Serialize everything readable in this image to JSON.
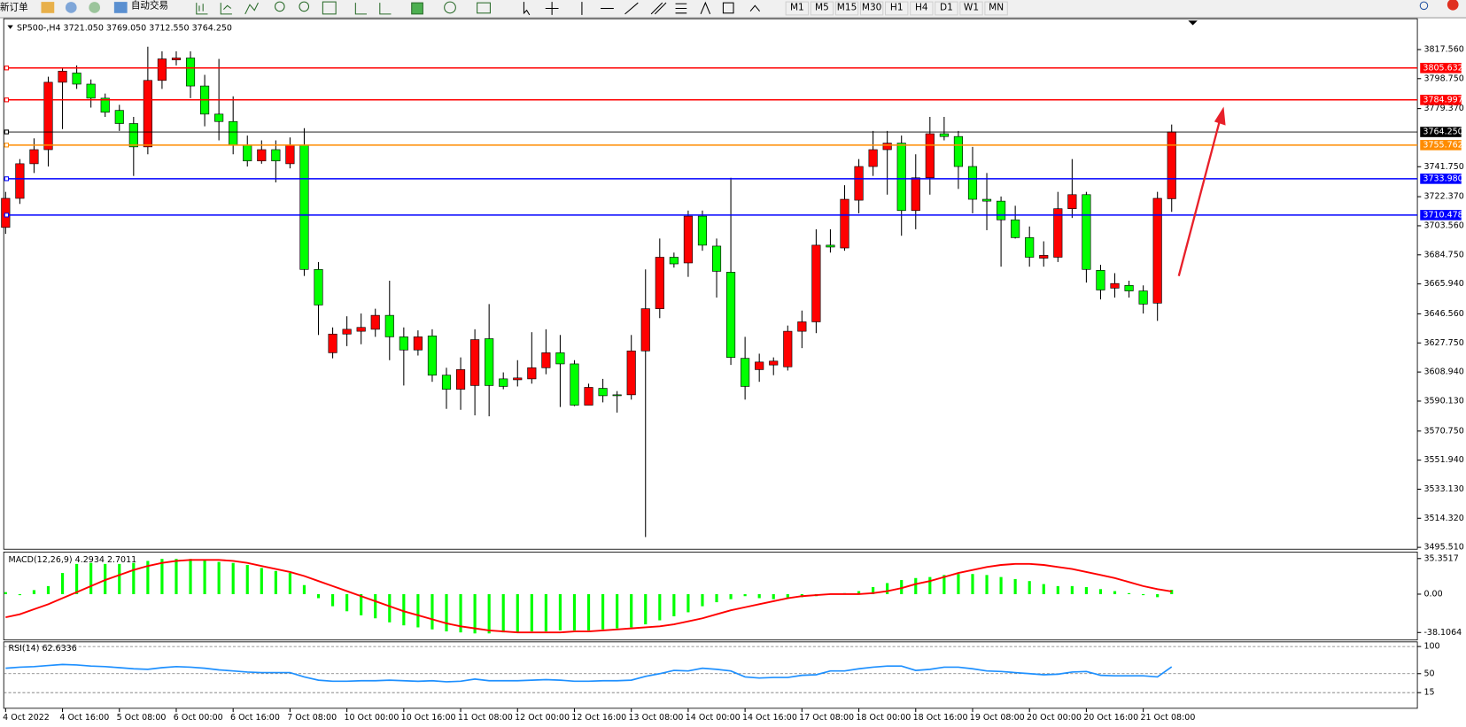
{
  "toolbar": {
    "new_order": "新订单",
    "auto_trading": "自动交易",
    "timeframes": [
      "M1",
      "M5",
      "M15",
      "M30",
      "H1",
      "H4",
      "D1",
      "W1",
      "MN"
    ]
  },
  "chart_data": [
    {
      "type": "candlestick",
      "title": "SP500-,H4",
      "title_values": [
        {
          "value": 3721.05,
          "label": "3721.050"
        },
        {
          "value": 3769.05,
          "label": "3769.050"
        },
        {
          "value": 3712.55,
          "label": "3712.550"
        },
        {
          "value": 3764.25,
          "label": "3764.250"
        }
      ],
      "x": [
        "4 Oct 2022",
        null,
        null,
        null,
        "4 Oct 16:00",
        null,
        null,
        null,
        "5 Oct 08:00",
        null,
        null,
        null,
        "6 Oct 00:00",
        null,
        null,
        null,
        "6 Oct 16:00",
        null,
        null,
        null,
        "7 Oct 08:00",
        null,
        null,
        null,
        "10 Oct 00:00",
        null,
        null,
        null,
        "10 Oct 16:00",
        null,
        null,
        null,
        "11 Oct 08:00",
        null,
        null,
        null,
        "12 Oct 00:00",
        null,
        null,
        null,
        "12 Oct 16:00",
        null,
        null,
        null,
        "13 Oct 08:00",
        null,
        null,
        null,
        "14 Oct 00:00",
        null,
        null,
        null,
        "14 Oct 16:00",
        null,
        null,
        null,
        "17 Oct 08:00",
        null,
        null,
        null,
        "18 Oct 00:00",
        null,
        null,
        null,
        "18 Oct 16:00",
        null,
        null,
        null,
        "19 Oct 08:00",
        null,
        null,
        null,
        "20 Oct 00:00",
        null,
        null,
        null,
        "20 Oct 16:00",
        null,
        null,
        null,
        "21 Oct 08:00",
        null,
        null
      ],
      "open": [
        3702.5,
        3721.3,
        3743.7,
        3752.8,
        3796.4,
        3802.4,
        3795.2,
        3786.1,
        3778.2,
        3769.7,
        3754.6,
        3797.6,
        3810.9,
        3812.1,
        3794.0,
        3775.8,
        3771.0,
        3755.8,
        3745.5,
        3752.8,
        3743.7,
        3755.8,
        3675.3,
        3621.4,
        3633.5,
        3635.3,
        3636.6,
        3645.6,
        3631.7,
        3623.2,
        3632.3,
        3606.9,
        3597.8,
        3600.2,
        3630.5,
        3604.5,
        3603.9,
        3604.5,
        3611.7,
        3621.4,
        3614.2,
        3587.5,
        3598.4,
        3594.2,
        3594.2,
        3622.6,
        3649.9,
        3683.2,
        3679.5,
        3709.8,
        3690.4,
        3673.5,
        3617.8,
        3610.5,
        3613.5,
        3612.3,
        3635.3,
        3641.4,
        3691.0,
        3689.2,
        3720.1,
        3741.9,
        3752.8,
        3757.0,
        3713.4,
        3734.6,
        3763.1,
        3761.3,
        3741.9,
        3720.7,
        3719.5,
        3707.4,
        3695.9,
        3682.6,
        3683.2,
        3714.6,
        3723.7,
        3674.7,
        3663.2,
        3665.0,
        3661.4,
        3653.5,
        3721.05
      ],
      "high": [
        3725.5,
        3746.7,
        3760.1,
        3800.0,
        3805.5,
        3807.3,
        3798.2,
        3789.1,
        3781.8,
        3774.0,
        3819.4,
        3816.4,
        3816.4,
        3816.4,
        3801.2,
        3811.5,
        3787.3,
        3761.9,
        3758.8,
        3758.8,
        3760.7,
        3766.7,
        3680.1,
        3637.8,
        3645.0,
        3646.8,
        3649.9,
        3668.0,
        3637.8,
        3635.9,
        3636.6,
        3611.7,
        3618.4,
        3636.6,
        3652.9,
        3608.7,
        3616.6,
        3634.7,
        3636.6,
        3632.9,
        3616.6,
        3601.4,
        3604.5,
        3596.6,
        3632.9,
        3675.3,
        3695.3,
        3686.2,
        3713.4,
        3713.4,
        3695.3,
        3734.6,
        3631.7,
        3620.8,
        3618.4,
        3639.0,
        3648.7,
        3701.3,
        3701.3,
        3729.8,
        3746.7,
        3764.9,
        3764.9,
        3761.9,
        3749.8,
        3774.0,
        3774.0,
        3764.9,
        3754.6,
        3737.7,
        3722.5,
        3716.5,
        3703.1,
        3693.5,
        3725.5,
        3746.7,
        3725.5,
        3678.3,
        3672.9,
        3668.0,
        3665.0,
        3725.5,
        3769.05
      ],
      "low": [
        3698.3,
        3717.7,
        3737.7,
        3741.9,
        3766.1,
        3792.1,
        3780.0,
        3774.0,
        3764.9,
        3735.8,
        3749.8,
        3792.1,
        3807.3,
        3786.1,
        3767.9,
        3758.8,
        3749.8,
        3741.9,
        3743.7,
        3731.6,
        3740.7,
        3671.1,
        3632.9,
        3617.8,
        3625.7,
        3626.9,
        3631.7,
        3616.6,
        3600.2,
        3619.6,
        3602.6,
        3585.1,
        3584.5,
        3580.9,
        3580.3,
        3597.8,
        3599.6,
        3601.4,
        3607.5,
        3586.3,
        3586.9,
        3587.5,
        3589.3,
        3582.7,
        3591.1,
        3502.2,
        3643.8,
        3676.5,
        3670.5,
        3687.4,
        3657.1,
        3613.5,
        3591.1,
        3602.6,
        3606.9,
        3609.9,
        3624.4,
        3634.1,
        3686.2,
        3687.4,
        3711.6,
        3735.8,
        3723.7,
        3697.1,
        3701.3,
        3723.7,
        3758.8,
        3727.4,
        3711.6,
        3700.7,
        3677.1,
        3695.3,
        3677.1,
        3677.1,
        3680.1,
        3708.6,
        3666.8,
        3655.9,
        3657.1,
        3657.1,
        3646.8,
        3642.0,
        3712.55
      ],
      "close": [
        3721.3,
        3743.7,
        3752.8,
        3796.4,
        3803.6,
        3795.2,
        3786.1,
        3777.0,
        3769.7,
        3754.6,
        3797.6,
        3811.5,
        3812.1,
        3794.0,
        3775.8,
        3771.0,
        3755.8,
        3745.5,
        3752.8,
        3745.5,
        3755.8,
        3675.3,
        3652.3,
        3633.5,
        3636.6,
        3637.8,
        3645.6,
        3631.7,
        3623.2,
        3631.7,
        3606.9,
        3597.8,
        3610.5,
        3629.9,
        3600.2,
        3599.6,
        3605.1,
        3611.7,
        3621.4,
        3614.2,
        3587.5,
        3599.0,
        3593.6,
        3593.6,
        3622.6,
        3649.9,
        3683.2,
        3678.9,
        3709.8,
        3691.0,
        3674.1,
        3618.4,
        3599.6,
        3615.4,
        3616.0,
        3635.3,
        3641.4,
        3691.0,
        3689.8,
        3720.7,
        3741.9,
        3752.8,
        3757.0,
        3713.4,
        3734.6,
        3763.1,
        3761.3,
        3741.9,
        3720.7,
        3719.5,
        3707.4,
        3695.9,
        3683.2,
        3684.4,
        3714.6,
        3723.7,
        3675.3,
        3662.0,
        3666.2,
        3661.4,
        3652.9,
        3721.3,
        3764.25
      ],
      "up_color": "#ff0000",
      "down_color": "#00ff00",
      "ylim": [
        3494.3,
        3836.3
      ],
      "yticks": [
        {
          "value": 3817.56,
          "label": "3817.560"
        },
        {
          "value": 3798.75,
          "label": "3798.750"
        },
        {
          "value": 3779.37,
          "label": "3779.370"
        },
        {
          "value": 3741.75,
          "label": "3741.750"
        },
        {
          "value": 3722.37,
          "label": "3722.370"
        },
        {
          "value": 3703.56,
          "label": "3703.560"
        },
        {
          "value": 3684.75,
          "label": "3684.750"
        },
        {
          "value": 3665.94,
          "label": "3665.940"
        },
        {
          "value": 3646.56,
          "label": "3646.560"
        },
        {
          "value": 3627.75,
          "label": "3627.750"
        },
        {
          "value": 3608.94,
          "label": "3608.940"
        },
        {
          "value": 3590.13,
          "label": "3590.130"
        },
        {
          "value": 3570.75,
          "label": "3570.750"
        },
        {
          "value": 3551.94,
          "label": "3551.940"
        },
        {
          "value": 3533.13,
          "label": "3533.130"
        },
        {
          "value": 3514.32,
          "label": "3514.320"
        },
        {
          "value": 3495.51,
          "label": "3495.510"
        }
      ],
      "grid": false,
      "hlines": [
        {
          "value": 3805.632,
          "label": "3805.632",
          "color": "#ff0000"
        },
        {
          "value": 3784.997,
          "label": "3784.997",
          "color": "#ff0000"
        },
        {
          "value": 3764.25,
          "label": "3764.250",
          "color": "#000000"
        },
        {
          "value": 3755.762,
          "label": "3755.762",
          "color": "#ff8c00"
        },
        {
          "value": 3733.98,
          "label": "3733.980",
          "color": "#0000ff"
        },
        {
          "value": 3710.478,
          "label": "3710.478",
          "color": "#0000ff"
        }
      ]
    },
    {
      "type": "macd",
      "title": "MACD(12,26,9)",
      "main_value": 4.2934,
      "signal_value": 2.7011,
      "histogram": [
        2,
        -1,
        4,
        8,
        21,
        30,
        31,
        30,
        30,
        31,
        33,
        35,
        35,
        35,
        34,
        32,
        31,
        29,
        26,
        23,
        21,
        9,
        -4,
        -12,
        -17,
        -21,
        -24,
        -28,
        -31,
        -33,
        -35,
        -37,
        -38,
        -39,
        -39,
        -38,
        -38,
        -37,
        -37,
        -36,
        -36,
        -36,
        -35,
        -34,
        -33,
        -30,
        -26,
        -22,
        -18,
        -12,
        -8,
        -5,
        -2,
        -4,
        -5,
        -4,
        -3,
        -2,
        0,
        1,
        3,
        7,
        11,
        14,
        16,
        17,
        19,
        20,
        20,
        19,
        17,
        15,
        13,
        10,
        8,
        8,
        7,
        5,
        3,
        1,
        -1,
        -3,
        4.2934
      ],
      "signal": [
        -23,
        -20,
        -15,
        -10,
        -4,
        2,
        8,
        14,
        19,
        24,
        28,
        31,
        33,
        34,
        34,
        34,
        33,
        31,
        28,
        25,
        22,
        18,
        13,
        8,
        3,
        -2,
        -7,
        -12,
        -17,
        -21,
        -25,
        -29,
        -32,
        -34,
        -36,
        -37,
        -38,
        -38,
        -38,
        -38,
        -37,
        -37,
        -36,
        -35,
        -34,
        -33,
        -32,
        -30,
        -27,
        -24,
        -20,
        -16,
        -13,
        -10,
        -7,
        -4,
        -2,
        -1,
        0,
        0,
        0,
        1,
        3,
        6,
        10,
        13,
        17,
        21,
        24,
        27,
        29,
        30,
        30,
        29,
        27,
        25,
        22,
        19,
        16,
        12,
        8,
        5,
        2.7011
      ],
      "histogram_color": "#00ff00",
      "signal_color": "#ff0000",
      "ylim": [
        -44.6,
        40.9
      ],
      "yticks": [
        35.3517,
        {
          "value": 0,
          "label": "0.00"
        },
        -38.1064
      ]
    },
    {
      "type": "line",
      "title": "RSI(14)",
      "last_value": 62.6336,
      "values": [
        60,
        62,
        63,
        65,
        67,
        66,
        64,
        63,
        61,
        59,
        58,
        61,
        63,
        62,
        60,
        57,
        55,
        53,
        52,
        52,
        52,
        44,
        38,
        36,
        36,
        37,
        37,
        38,
        37,
        36,
        37,
        35,
        36,
        40,
        37,
        37,
        37,
        38,
        39,
        38,
        36,
        36,
        37,
        37,
        38,
        45,
        50,
        56,
        55,
        60,
        58,
        55,
        44,
        42,
        43,
        43,
        47,
        48,
        55,
        55,
        59,
        62,
        64,
        64,
        56,
        58,
        62,
        62,
        59,
        55,
        54,
        52,
        50,
        48,
        49,
        53,
        54,
        47,
        46,
        46,
        46,
        44,
        62.6336
      ],
      "color": "#1e90ff",
      "ylim": [
        -12.1,
        106.9
      ],
      "yticks": [
        100,
        50,
        15
      ]
    }
  ]
}
